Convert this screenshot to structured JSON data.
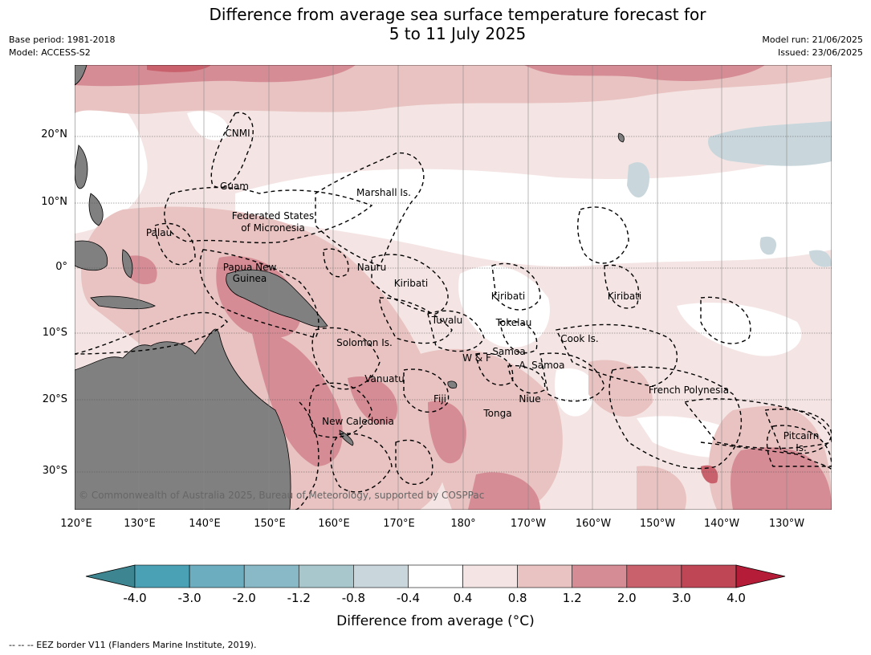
{
  "title_line1": "Difference from average sea surface temperature forecast for",
  "title_line2": "5 to 11 July 2025",
  "meta_left": [
    "Base period: 1981-2018",
    "Model: ACCESS-S2"
  ],
  "meta_right": [
    "Model run: 21/06/2025",
    "Issued: 23/06/2025"
  ],
  "lat_labels": [
    "20°N",
    "10°N",
    "0°",
    "10°S",
    "20°S",
    "30°S"
  ],
  "lon_labels": [
    "120°E",
    "130°E",
    "140°E",
    "150°E",
    "160°E",
    "170°E",
    "180°",
    "170°W",
    "160°W",
    "150°W",
    "140°W",
    "130°W"
  ],
  "regions": {
    "cnmi": "CNMI",
    "guam": "Guam",
    "marshall": "Marshall Is.",
    "fsm_1": "Federated States",
    "fsm_2": "of Micronesia",
    "palau": "Palau",
    "png_1": "Papua New",
    "png_2": "Guinea",
    "nauru": "Nauru",
    "kiribati_w": "Kiribati",
    "kiribati_c": "Kiribati",
    "kiribati_e": "Kiribati",
    "tuvalu": "Tuvalu",
    "tokelau": "Tokelau",
    "cook": "Cook Is.",
    "solomon": "Solomon Is.",
    "wf": "W & F",
    "samoa": "Samoa",
    "asamoa": "A. Samoa",
    "vanuatu": "Vanuatu",
    "fiji": "Fiji",
    "niue": "Niue",
    "tonga": "Tonga",
    "french_polynesia": "French Polynesia",
    "new_caledonia": "New Caledonia",
    "pitcairn_1": "Pitcairn",
    "pitcairn_2": "Is."
  },
  "copyright": "© Commonwealth of Australia 2025, Bureau of Meteorology, supported by COSPPac",
  "colorbar": {
    "ticks": [
      "-4.0",
      "-3.0",
      "-2.0",
      "-1.2",
      "-0.8",
      "-0.4",
      "0.4",
      "0.8",
      "1.2",
      "2.0",
      "3.0",
      "4.0"
    ],
    "colors": [
      "#4aa1b5",
      "#6caebf",
      "#89b9c6",
      "#a7c7cd",
      "#c9d7dc",
      "#ffffff",
      "#f4e5e4",
      "#e8c3c1",
      "#d68c95",
      "#c8616c",
      "#bf4655"
    ],
    "extend_low_color": "#3d8590",
    "extend_high_color": "#b51c38",
    "label": "Difference from average (°C)"
  },
  "footer": "--  --  -- EEZ border V11 (Flanders Marine Institute, 2019)."
}
